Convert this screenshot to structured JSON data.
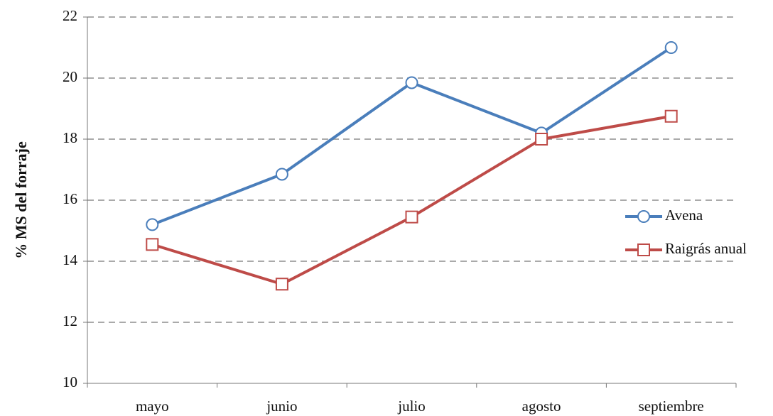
{
  "chart_data": {
    "type": "line",
    "y_label": "% MS del forraje",
    "categories": [
      "mayo",
      "junio",
      "julio",
      "agosto",
      "septiembre"
    ],
    "series": [
      {
        "name": "Avena",
        "color": "#4a7ebb",
        "marker": "circle",
        "values": [
          15.2,
          16.85,
          19.85,
          18.2,
          21.0
        ]
      },
      {
        "name": "Raigrás anual",
        "color": "#be4b48",
        "marker": "square",
        "values": [
          14.55,
          13.25,
          15.45,
          18.0,
          18.75
        ]
      }
    ],
    "ylim": [
      10,
      22
    ],
    "yticks": [
      10,
      12,
      14,
      16,
      18,
      20,
      22
    ],
    "grid": true,
    "legend": "right"
  }
}
